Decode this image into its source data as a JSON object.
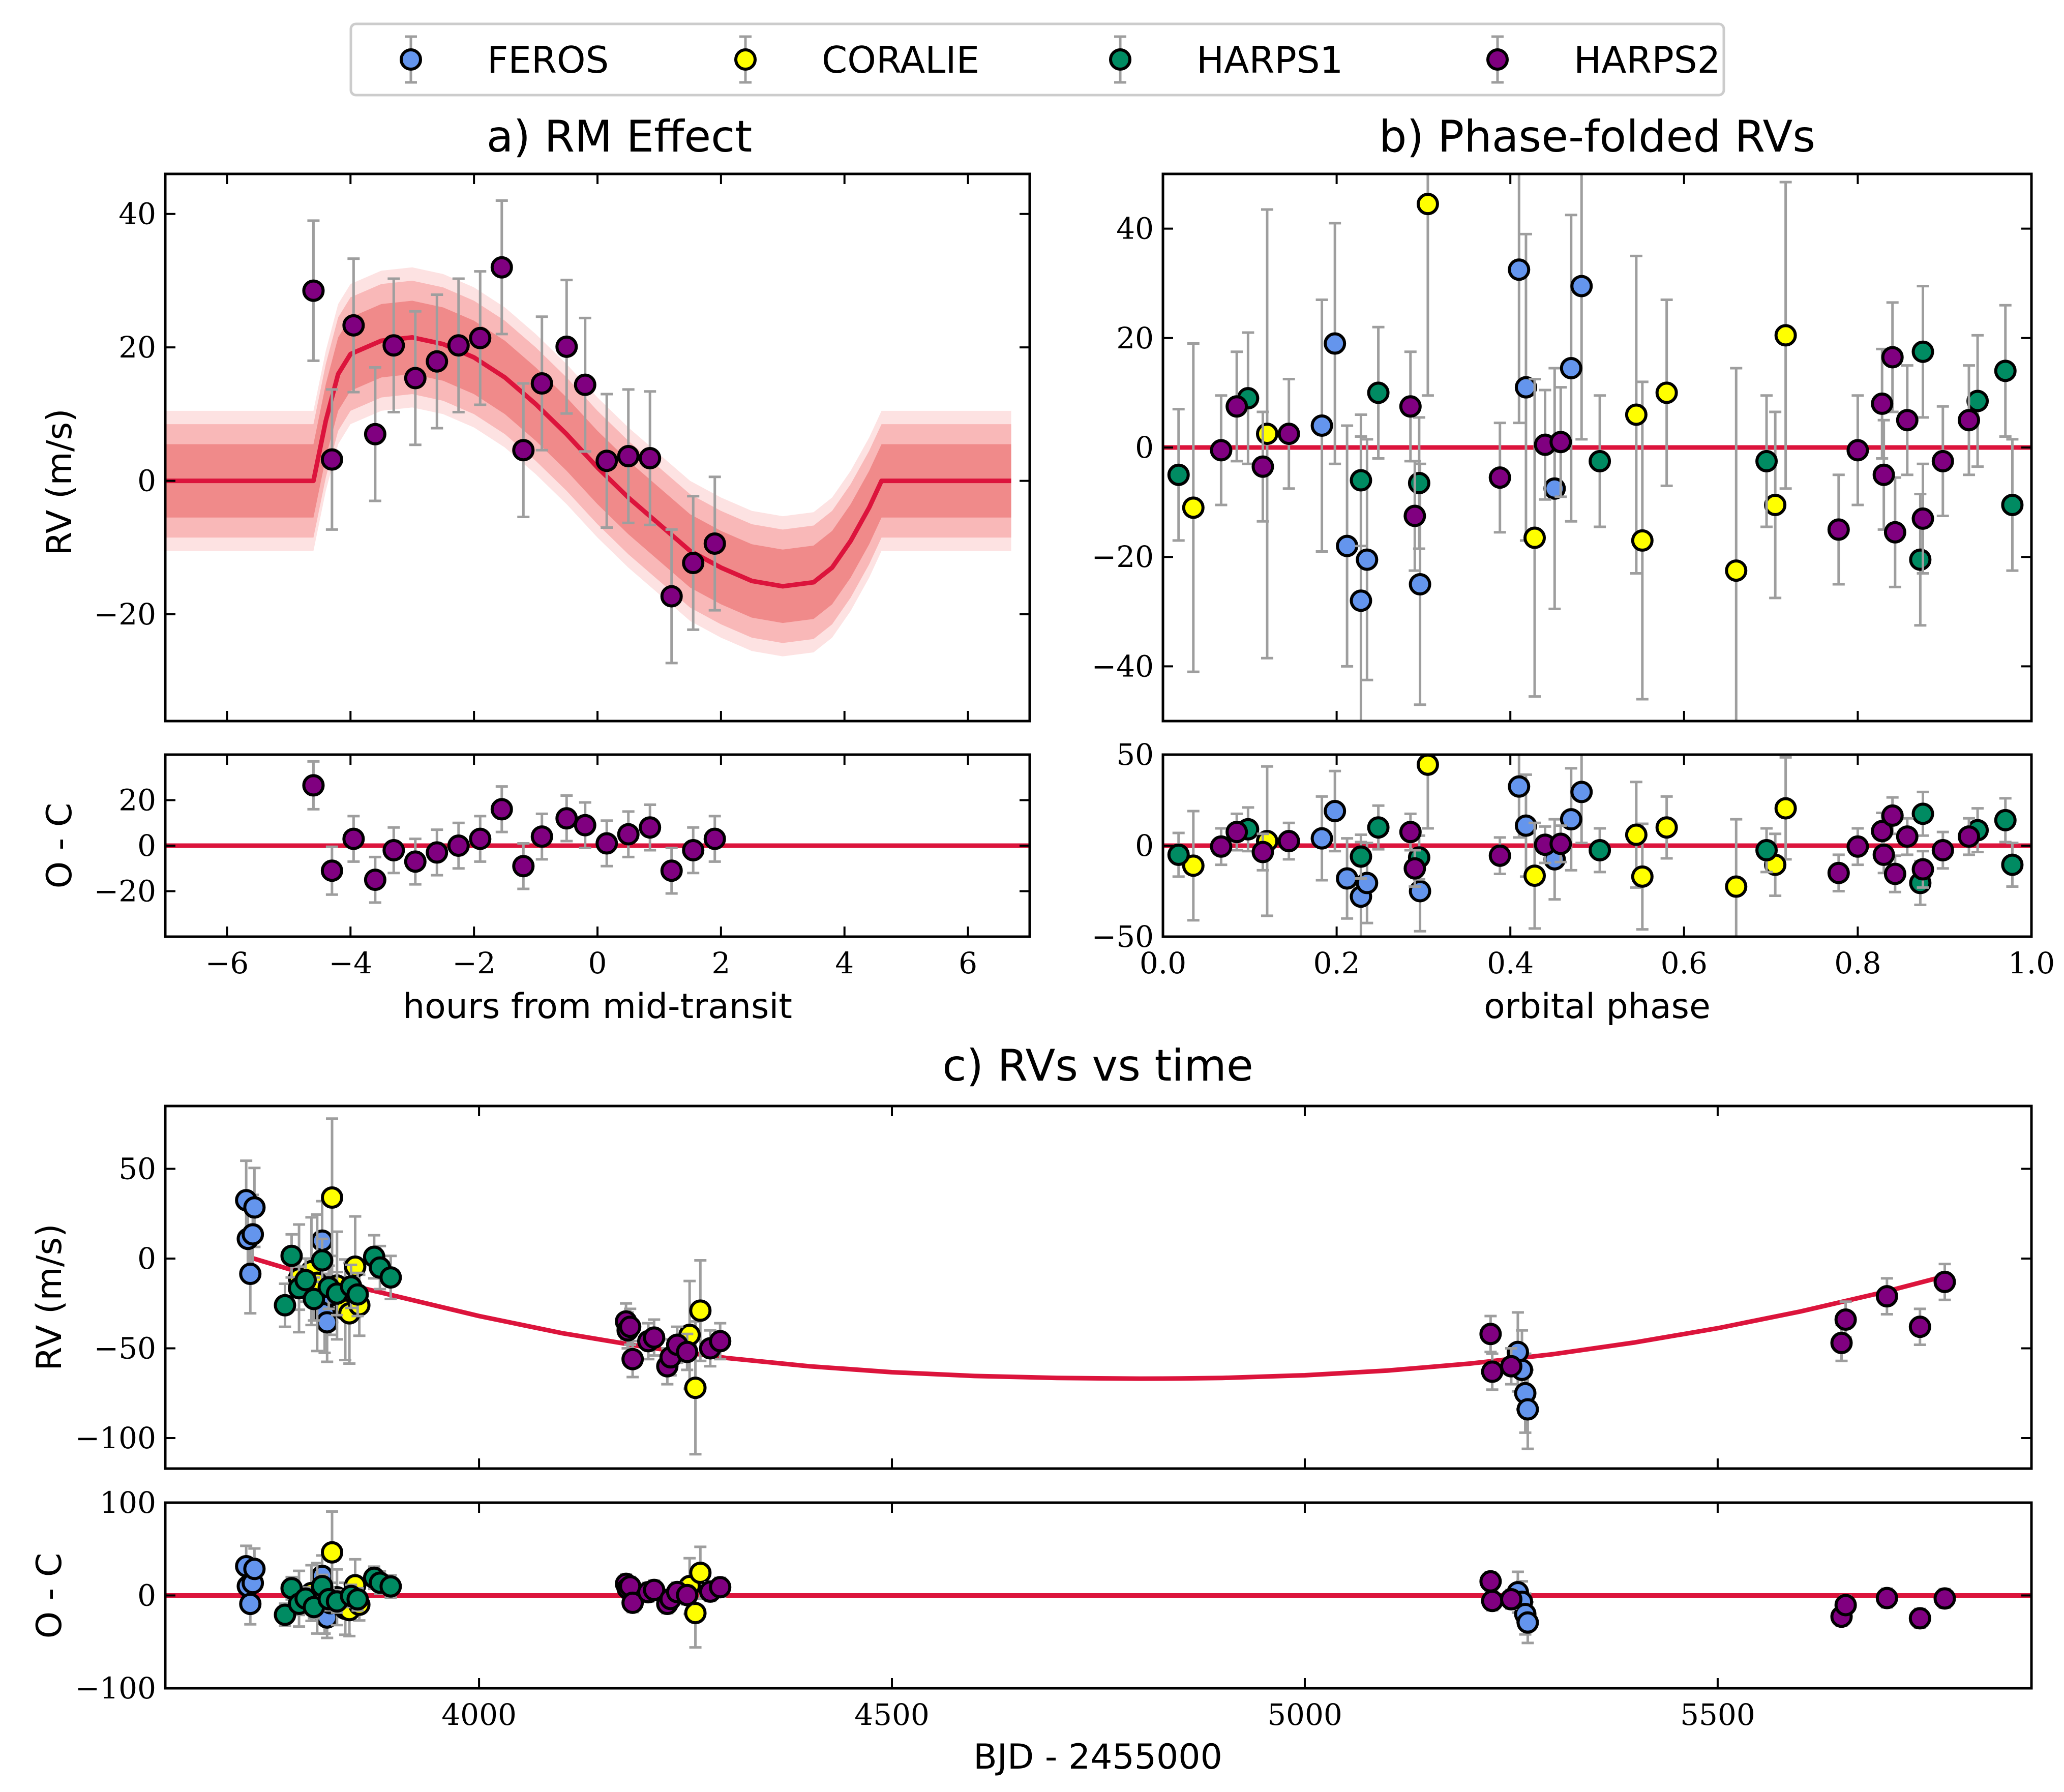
{
  "colors": {
    "FEROS": "#6495ed",
    "CORALIE": "#ffff00",
    "HARPS1": "#008b62",
    "HARPS2": "#800080",
    "model": "#dc143c",
    "errorbar": "#9e9e9e",
    "band_outer": "#fde2e2",
    "band_mid": "#f9b8b8",
    "band_inner": "#f08a8a"
  },
  "legend": {
    "placement": "top-center",
    "entries": [
      "FEROS",
      "CORALIE",
      "HARPS1",
      "HARPS2"
    ]
  },
  "chart_data": [
    {
      "id": "rm",
      "type": "scatter",
      "title": "a) RM Effect",
      "ylabel": "RV (m/s)",
      "xlim": [
        -7,
        7
      ],
      "ylim": [
        -36,
        46
      ],
      "yticks": [
        -20,
        0,
        20,
        40
      ],
      "xticks": [
        -6,
        -4,
        -2,
        0,
        2,
        4,
        6
      ],
      "model": {
        "x": [
          -7.0,
          -4.6,
          -4.4,
          -4.2,
          -4.0,
          -3.5,
          -3.0,
          -2.5,
          -2.0,
          -1.5,
          -1.0,
          -0.5,
          0.0,
          0.5,
          1.0,
          1.5,
          2.0,
          2.5,
          3.0,
          3.5,
          3.8,
          4.1,
          4.4,
          4.6,
          6.7
        ],
        "y": [
          0,
          0,
          9,
          16,
          19,
          21,
          21.5,
          20.5,
          18.5,
          15.5,
          11.5,
          7,
          2,
          -2.5,
          -6.5,
          -10.5,
          -13,
          -15,
          -15.8,
          -15.2,
          -13,
          -9,
          -4,
          0,
          0
        ],
        "band_widths": [
          5.5,
          8.5,
          10.5
        ]
      },
      "series": [
        {
          "name": "HARPS2",
          "x": [
            -4.6,
            -4.3,
            -3.95,
            -3.6,
            -3.3,
            -2.95,
            -2.6,
            -2.25,
            -1.9,
            -1.55,
            -1.2,
            -0.9,
            -0.5,
            -0.2,
            0.15,
            0.5,
            0.85,
            1.2,
            1.55,
            1.9
          ],
          "y": [
            28.5,
            3.2,
            23.3,
            7.0,
            20.3,
            15.4,
            17.9,
            20.3,
            21.4,
            32.0,
            4.6,
            14.6,
            20.1,
            14.4,
            3.0,
            3.7,
            3.4,
            -17.3,
            -12.3,
            -9.4
          ],
          "err": [
            10.5,
            10.5,
            10.0,
            10.0,
            10.0,
            10.0,
            10.0,
            10.0,
            10.0,
            10.0,
            10.0,
            10.0,
            10.0,
            10.0,
            10.0,
            10.0,
            10.0,
            10.0,
            10.0,
            10.0
          ]
        }
      ]
    },
    {
      "id": "rm_resid",
      "type": "scatter",
      "ylabel": "O - C",
      "xlabel": "hours from mid-transit",
      "xlim": [
        -7,
        7
      ],
      "ylim": [
        -40,
        40
      ],
      "yticks": [
        -20,
        0,
        20
      ],
      "xticks": [
        -6,
        -4,
        -2,
        0,
        2,
        4,
        6
      ],
      "series": [
        {
          "name": "HARPS2",
          "x": [
            -4.6,
            -4.3,
            -3.95,
            -3.6,
            -3.3,
            -2.95,
            -2.6,
            -2.25,
            -1.9,
            -1.55,
            -1.2,
            -0.9,
            -0.5,
            -0.2,
            0.15,
            0.5,
            0.85,
            1.2,
            1.55,
            1.9
          ],
          "y": [
            26.5,
            -11,
            3,
            -15,
            -2,
            -7,
            -3,
            0,
            3,
            16,
            -9,
            4,
            12,
            9,
            1,
            5,
            8,
            -11,
            -2,
            3
          ],
          "err": [
            10.5,
            10.5,
            10.0,
            10.0,
            10.0,
            10.0,
            10.0,
            10.0,
            10.0,
            10.0,
            10.0,
            10.0,
            10.0,
            10.0,
            10.0,
            10.0,
            10.0,
            10.0,
            10.0,
            10.0
          ]
        }
      ]
    },
    {
      "id": "phase",
      "type": "scatter",
      "title": "b) Phase-folded RVs",
      "xlim": [
        0,
        1
      ],
      "ylim": [
        -50,
        50
      ],
      "yticks": [
        -40,
        -20,
        0,
        20,
        40
      ],
      "xticks": [
        0.0,
        0.2,
        0.4,
        0.6,
        0.8,
        1.0
      ],
      "model_y": 0,
      "series": [
        {
          "name": "FEROS",
          "x": [
            0.183,
            0.198,
            0.212,
            0.228,
            0.235,
            0.296,
            0.41,
            0.418,
            0.451,
            0.47,
            0.482
          ],
          "y": [
            4,
            19,
            -18,
            -28,
            -20.5,
            -25,
            32.5,
            11,
            -7.5,
            14.5,
            29.5
          ],
          "err": [
            23,
            22,
            22,
            30,
            22,
            22,
            28,
            28,
            22,
            28,
            28
          ]
        },
        {
          "name": "CORALIE",
          "x": [
            0.035,
            0.12,
            0.305,
            0.428,
            0.545,
            0.552,
            0.58,
            0.66,
            0.705,
            0.717
          ],
          "y": [
            -11,
            2.5,
            44.5,
            -16.5,
            6,
            -17,
            10,
            -22.5,
            -10.5,
            20.5
          ],
          "err": [
            30,
            41,
            35,
            29,
            29,
            29,
            17,
            37,
            17,
            28
          ]
        },
        {
          "name": "HARPS1",
          "x": [
            0.018,
            0.098,
            0.228,
            0.248,
            0.295,
            0.503,
            0.695,
            0.872,
            0.875,
            0.938,
            0.97,
            0.978
          ],
          "y": [
            -5,
            9,
            -6,
            10,
            -6.5,
            -2.5,
            -2.5,
            -20.5,
            17.5,
            8.5,
            14,
            -10.5
          ],
          "err": [
            12,
            12,
            12,
            12,
            12,
            12,
            12,
            12,
            12,
            12,
            12,
            12
          ]
        },
        {
          "name": "HARPS2",
          "x": [
            0.067,
            0.085,
            0.115,
            0.145,
            0.285,
            0.29,
            0.388,
            0.44,
            0.458,
            0.778,
            0.8,
            0.828,
            0.83,
            0.84,
            0.843,
            0.857,
            0.875,
            0.898,
            0.928
          ],
          "y": [
            -0.5,
            7.5,
            -3.5,
            2.5,
            7.5,
            -12.5,
            -5.5,
            0.5,
            1,
            -15,
            -0.5,
            8,
            -5,
            16.5,
            -15.5,
            5,
            -13,
            -2.5,
            5
          ],
          "err": [
            10,
            10,
            10,
            10,
            10,
            10,
            10,
            10,
            10,
            10,
            10,
            10,
            10,
            10,
            10,
            10,
            10,
            10,
            10
          ]
        }
      ]
    },
    {
      "id": "phase_resid",
      "type": "scatter",
      "xlabel": "orbital phase",
      "xlim": [
        0,
        1
      ],
      "ylim": [
        -50,
        50
      ],
      "yticks": [
        -50,
        0,
        50
      ],
      "xticks": [
        0.0,
        0.2,
        0.4,
        0.6,
        0.8,
        1.0
      ],
      "model_y": 0
    },
    {
      "id": "time",
      "type": "scatter",
      "title": "c) RVs vs time",
      "ylabel": "RV (m/s)",
      "xlim": [
        3620,
        5880
      ],
      "ylim": [
        -117,
        85
      ],
      "yticks": [
        -100,
        -50,
        0,
        50
      ],
      "xticks": [
        4000,
        4500,
        5000,
        5500
      ],
      "model": {
        "x": [
          3720,
          3800,
          3900,
          4000,
          4100,
          4200,
          4300,
          4400,
          4500,
          4600,
          4700,
          4800,
          4850,
          4900,
          5000,
          5100,
          5200,
          5300,
          5400,
          5500,
          5600,
          5700,
          5775
        ],
        "y": [
          1,
          -10,
          -21,
          -32,
          -41.5,
          -49.2,
          -55.4,
          -60,
          -63.3,
          -65.4,
          -66.5,
          -66.9,
          -66.8,
          -66.5,
          -65,
          -62.4,
          -58.5,
          -53.3,
          -46.7,
          -38.8,
          -29.5,
          -18.8,
          -9.8
        ]
      },
      "series": [
        {
          "name": "FEROS",
          "x": [
            3718,
            3720,
            3723,
            3726,
            3728,
            3810,
            3813,
            3816,
            3820,
            5258,
            5263,
            5267,
            5270
          ],
          "y": [
            32.5,
            11,
            -8.5,
            13.5,
            28.5,
            10,
            -30.5,
            -35.5,
            -20.5,
            -52,
            -62,
            -75,
            -84
          ],
          "err": [
            22,
            22,
            22,
            22,
            22,
            22,
            22,
            22,
            22,
            22,
            22,
            22,
            22
          ]
        },
        {
          "name": "CORALIE",
          "x": [
            3782,
            3797,
            3804,
            3822,
            3828,
            3838,
            3843,
            3850,
            3855,
            4255,
            4262,
            4268
          ],
          "y": [
            -11,
            -7,
            -13.5,
            34,
            -15,
            -28.5,
            -30.5,
            -4.5,
            -26,
            -42.5,
            -72,
            -29
          ],
          "err": [
            30,
            30,
            38,
            44,
            30,
            28,
            28,
            28,
            17,
            30,
            37,
            28
          ]
        },
        {
          "name": "HARPS1",
          "x": [
            3765,
            3773,
            3782,
            3790,
            3800,
            3810,
            3818,
            3828,
            3845,
            3853,
            3873,
            3880,
            3893
          ],
          "y": [
            -26,
            1.5,
            -16.5,
            -12,
            -22.5,
            -1,
            -16,
            -19.5,
            -15.5,
            -20,
            1,
            -5,
            -10.5
          ],
          "err": [
            12,
            12,
            12,
            12,
            12,
            12,
            12,
            12,
            12,
            12,
            12,
            12,
            12
          ]
        },
        {
          "name": "HARPS2",
          "x": [
            4178,
            4180,
            4183,
            4186,
            4205,
            4212,
            4228,
            4232,
            4240,
            4252,
            4280,
            4292,
            5225,
            5227,
            5250,
            5650,
            5655,
            5705,
            5745,
            5775
          ],
          "y": [
            -35,
            -40,
            -38,
            -56,
            -46,
            -44,
            -60,
            -55,
            -48,
            -52,
            -50,
            -46,
            -42,
            -63,
            -60,
            -47,
            -34,
            -21,
            -38,
            -13
          ],
          "err": [
            10,
            10,
            10,
            10,
            10,
            10,
            10,
            10,
            10,
            10,
            10,
            10,
            10,
            10,
            10,
            10,
            10,
            10,
            10,
            10
          ]
        }
      ]
    },
    {
      "id": "time_resid",
      "type": "scatter",
      "ylabel": "O - C",
      "xlabel": "BJD - 2455000",
      "xlim": [
        3620,
        5880
      ],
      "ylim": [
        -100,
        100
      ],
      "yticks": [
        -100,
        0,
        100
      ],
      "xticks": [
        4000,
        4500,
        5000,
        5500
      ],
      "model_y": 0
    }
  ]
}
